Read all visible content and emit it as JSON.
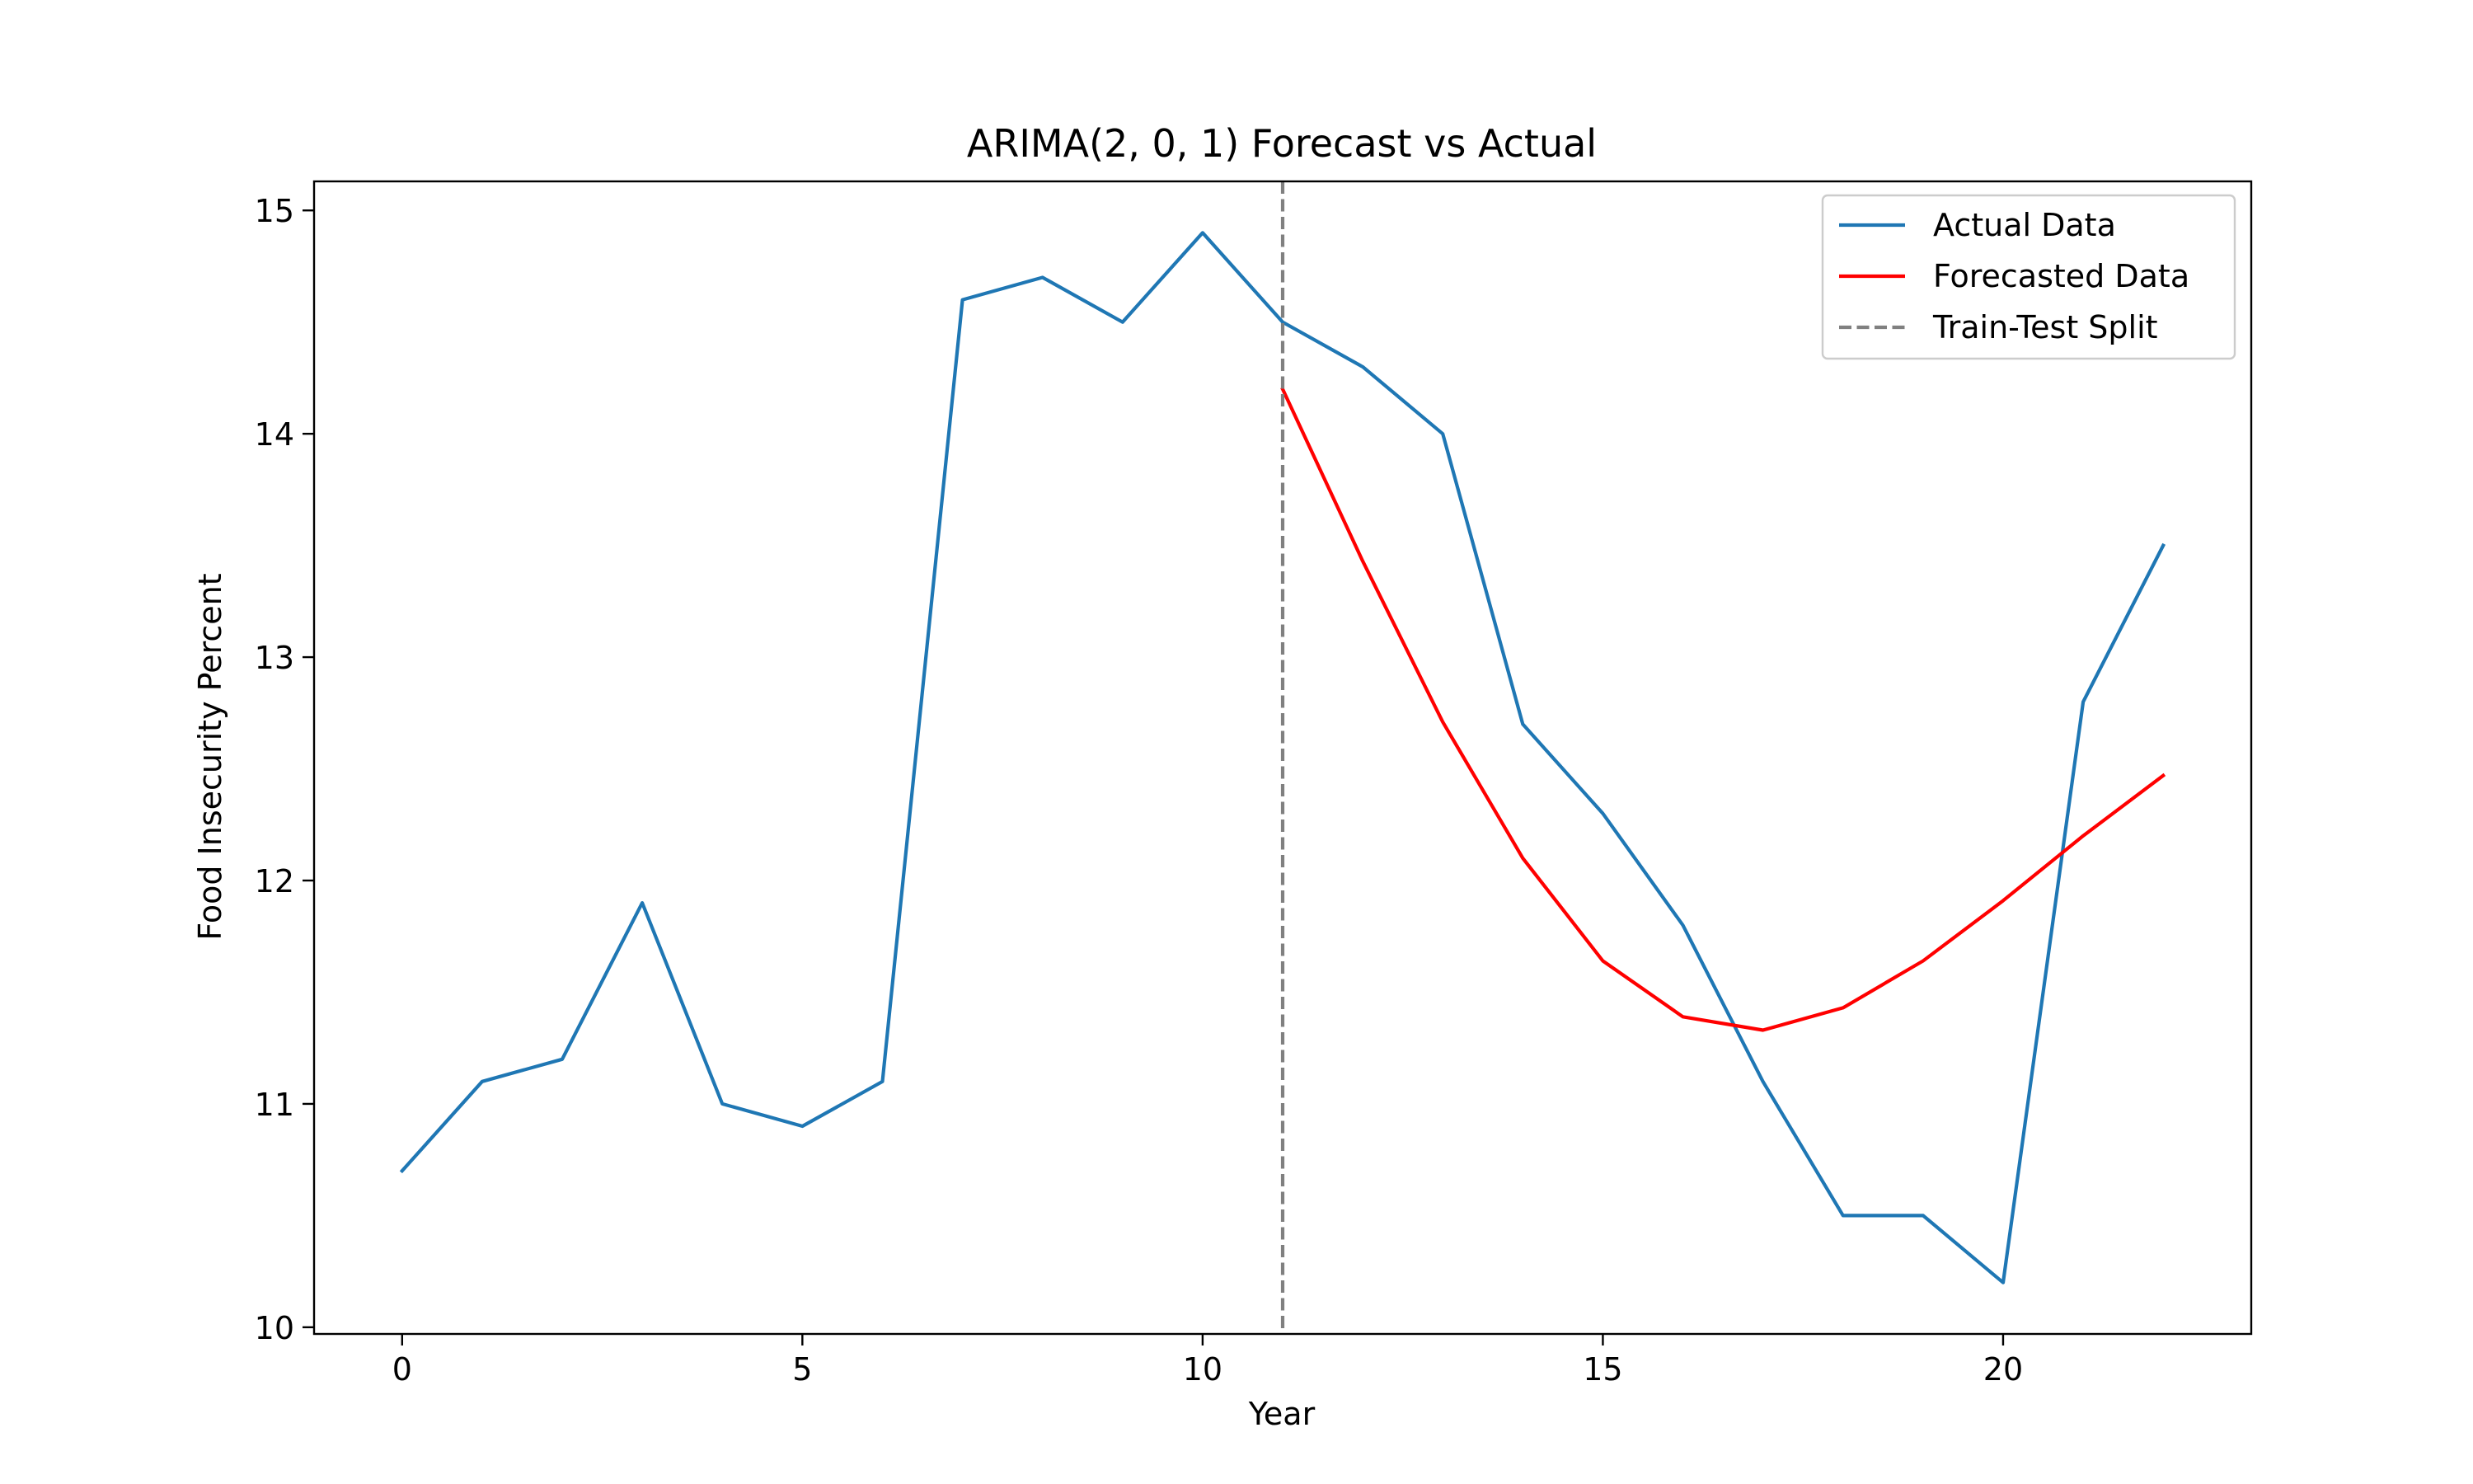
{
  "chart_data": {
    "type": "line",
    "title": "ARIMA(2, 0, 1) Forecast vs Actual",
    "xlabel": "Year",
    "ylabel": "Food Insecurity Percent",
    "xlim": [
      -1.1,
      23.1
    ],
    "ylim": [
      9.97,
      15.13
    ],
    "xticks": [
      0,
      5,
      10,
      15,
      20
    ],
    "yticks": [
      10,
      11,
      12,
      13,
      14,
      15
    ],
    "grid": false,
    "legend_position": "top-right",
    "series": [
      {
        "name": "Actual Data",
        "color": "#1f77b4",
        "style": "solid",
        "x": [
          0,
          1,
          2,
          3,
          4,
          5,
          6,
          7,
          8,
          9,
          10,
          11,
          12,
          13,
          14,
          15,
          16,
          17,
          18,
          19,
          20,
          21,
          22
        ],
        "values": [
          10.7,
          11.1,
          11.2,
          11.9,
          11.0,
          10.9,
          11.1,
          14.6,
          14.7,
          14.5,
          14.9,
          14.5,
          14.3,
          14.0,
          12.7,
          12.3,
          11.8,
          11.1,
          10.5,
          10.5,
          10.2,
          12.8,
          13.5
        ]
      },
      {
        "name": "Forecasted Data",
        "color": "#ff0000",
        "style": "solid",
        "x": [
          11,
          12,
          13,
          14,
          15,
          16,
          17,
          18,
          19,
          20,
          21,
          22
        ],
        "values": [
          14.2,
          13.43,
          12.71,
          12.1,
          11.64,
          11.39,
          11.33,
          11.43,
          11.64,
          11.91,
          12.2,
          12.47
        ]
      }
    ],
    "vline": {
      "name": "Train-Test Split",
      "x": 11,
      "color": "#808080",
      "style": "dashed"
    }
  }
}
